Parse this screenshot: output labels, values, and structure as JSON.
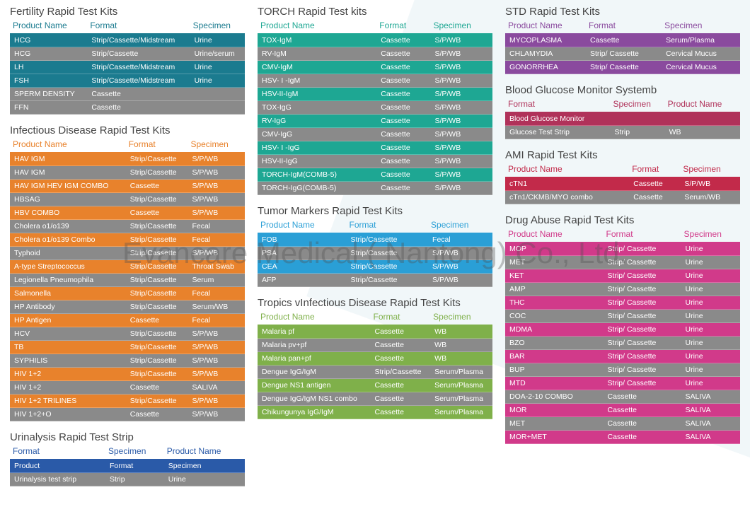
{
  "watermark": "Evancare Medical ( Nantong) Co., Ltd.",
  "sections": {
    "fertility": {
      "title": "Fertility Rapid Test Kits",
      "color": "#1b7b8f",
      "header_color": "#1b7b8f",
      "cols": [
        "Product Name",
        "Format",
        "Specimen"
      ],
      "rows": [
        [
          "HCG",
          "Strip/Cassette/Midstream",
          "Urine"
        ],
        [
          "HCG",
          "Strip/Cassette",
          "Urine/serum"
        ],
        [
          "LH",
          "Strip/Cassette/Midstream",
          "Urine"
        ],
        [
          "FSH",
          "Strip/Cassette/Midstream",
          "Urine"
        ],
        [
          "SPERM DENSITY",
          "Cassette",
          ""
        ],
        [
          "FFN",
          "Cassette",
          ""
        ]
      ],
      "alt": [
        1,
        4,
        5
      ]
    },
    "infectious": {
      "title": "Infectious Disease Rapid Test Kits",
      "color": "#e8822c",
      "header_color": "#e8822c",
      "cols": [
        "Product Name",
        "Format",
        "Specimen"
      ],
      "rows": [
        [
          "HAV IGM",
          "Strip/Cassette",
          "S/P/WB"
        ],
        [
          "HAV IGM",
          "Strip/Cassette",
          "S/P/WB"
        ],
        [
          "HAV IGM HEV IGM COMBO",
          "Cassette",
          "S/P/WB"
        ],
        [
          "HBSAG",
          "Strip/Cassette",
          "S/P/WB"
        ],
        [
          "HBV COMBO",
          "Cassette",
          "S/P/WB"
        ],
        [
          "Cholera o1/o139",
          "Strip/Cassette",
          "Fecal"
        ],
        [
          "Cholera o1/o139 Combo",
          "Strip/Cassette",
          "Fecal"
        ],
        [
          "Typhoid",
          "Strip/Cassette",
          "S/P/WB"
        ],
        [
          "A-type Streptococcus",
          "Strip/Cassette",
          "Throat Swab"
        ],
        [
          "Legionella Pneumophila",
          "Strip/Cassette",
          "Serum"
        ],
        [
          "Salmonella",
          "Strip/Cassette",
          "Fecal"
        ],
        [
          "HP Antibody",
          "Strip/Cassette",
          "Serum/WB"
        ],
        [
          "HP Antigen",
          "Cassette",
          "Fecal"
        ],
        [
          "HCV",
          "Strip/Cassette",
          "S/P/WB"
        ],
        [
          "TB",
          "Strip/Cassette",
          "S/P/WB"
        ],
        [
          "SYPHILIS",
          "Strip/Cassette",
          "S/P/WB"
        ],
        [
          "HIV 1+2",
          "Strip/Cassette",
          "S/P/WB"
        ],
        [
          "HIV 1+2",
          "Cassette",
          "SALIVA"
        ],
        [
          "HIV 1+2 TRILINES",
          "Strip/Cassette",
          "S/P/WB"
        ],
        [
          "HIV 1+2+O",
          "Cassette",
          "S/P/WB"
        ]
      ],
      "alt": [
        1,
        3,
        5,
        7,
        9,
        11,
        13,
        15,
        17,
        19
      ]
    },
    "urinalysis": {
      "title": "Urinalysis Rapid Test Strip",
      "color": "#2a5aa8",
      "header_color": "#2a5aa8",
      "cols": [
        "Format",
        "Specimen",
        "Product Name"
      ],
      "rows": [
        [
          "Product",
          "Format",
          "Specimen"
        ],
        [
          "Urinalysis test strip",
          "Strip",
          "Urine"
        ]
      ],
      "alt": [
        1
      ]
    },
    "torch": {
      "title": "TORCH Rapid Test kits",
      "color": "#1ea793",
      "header_color": "#1ea793",
      "cols": [
        "Product Name",
        "Format",
        "Specimen"
      ],
      "rows": [
        [
          "TOX-IgM",
          "Cassette",
          "S/P/WB"
        ],
        [
          "RV-IgM",
          "Cassette",
          "S/P/WB"
        ],
        [
          "CMV-IgM",
          "Cassette",
          "S/P/WB"
        ],
        [
          "HSV- I -IgM",
          "Cassette",
          "S/P/WB"
        ],
        [
          "HSV-II-IgM",
          "Cassette",
          "S/P/WB"
        ],
        [
          "TOX-IgG",
          "Cassette",
          "S/P/WB"
        ],
        [
          "RV-IgG",
          "Cassette",
          "S/P/WB"
        ],
        [
          "CMV-IgG",
          "Cassette",
          "S/P/WB"
        ],
        [
          "HSV- I -IgG",
          "Cassette",
          "S/P/WB"
        ],
        [
          "HSV-II-IgG",
          "Cassette",
          "S/P/WB"
        ],
        [
          "TORCH-IgM(COMB-5)",
          "Cassette",
          "S/P/WB"
        ],
        [
          "TORCH-IgG(COMB-5)",
          "Cassette",
          "S/P/WB"
        ]
      ],
      "alt": [
        1,
        3,
        5,
        7,
        9,
        11
      ]
    },
    "tumor": {
      "title": "Tumor Markers Rapid Test Kits",
      "color": "#2a9fd6",
      "header_color": "#2a9fd6",
      "cols": [
        "Product Name",
        "Format",
        "Specimen"
      ],
      "rows": [
        [
          "FOB",
          "Strip/Cassette",
          "Fecal"
        ],
        [
          "PSA",
          "Strip/Cassette",
          "S/P/WB"
        ],
        [
          "CEA",
          "Strip/Cassette",
          "S/P/WB"
        ],
        [
          "AFP",
          "Strip/Cassette",
          "S/P/WB"
        ]
      ],
      "alt": [
        1,
        3
      ]
    },
    "tropics": {
      "title": "Tropics vInfectious Disease Rapid Test Kits",
      "color": "#7fb04a",
      "header_color": "#7fb04a",
      "cols": [
        "Product Name",
        "Format",
        "Specimen"
      ],
      "rows": [
        [
          "Malaria pf",
          "Cassette",
          "WB"
        ],
        [
          "Malaria  pv+pf",
          "Cassette",
          "WB"
        ],
        [
          "Malaria  pan+pf",
          "Cassette",
          "WB"
        ],
        [
          "Dengue IgG/IgM",
          "Strip/Cassette",
          "Serum/Plasma"
        ],
        [
          "Dengue NS1 antigen",
          "Cassette",
          "Serum/Plasma"
        ],
        [
          "Dengue IgG/IgM  NS1 combo",
          "Cassette",
          "Serum/Plasma"
        ],
        [
          "Chikungunya IgG/IgM",
          "Cassette",
          "Serum/Plasma"
        ]
      ],
      "alt": [
        1,
        3,
        5
      ]
    },
    "std": {
      "title": "STD Rapid Test Kits",
      "color": "#8a4a9e",
      "header_color": "#8a4a9e",
      "cols": [
        "Product Name",
        "Format",
        "Specimen"
      ],
      "rows": [
        [
          "MYCOPLASMA",
          "Cassette",
          "Serum/Plasma"
        ],
        [
          "CHLAMYDIA",
          "Strip/ Cassette",
          "Cervical Mucus"
        ],
        [
          "GONORRHEA",
          "Strip/ Cassette",
          "Cervical Mucus"
        ]
      ],
      "alt": [
        1
      ]
    },
    "glucose": {
      "title": "Blood Glucose Monitor Systemb",
      "color": "#b0325a",
      "header_color": "#b0325a",
      "cols": [
        "Format",
        "Specimen",
        "Product Name"
      ],
      "rows": [
        [
          "Blood Glucose Monitor",
          "",
          ""
        ],
        [
          "Glucose Test Strip",
          "Strip",
          "WB"
        ]
      ],
      "alt": [
        1
      ]
    },
    "ami": {
      "title": "AMI  Rapid Test Kits",
      "color": "#c22a4a",
      "header_color": "#c22a4a",
      "cols": [
        "Product Name",
        "Format",
        "Specimen"
      ],
      "rows": [
        [
          "cTN1",
          "Cassette",
          "S/P/WB"
        ],
        [
          "cTn1/CKMB/MYO combo",
          "Cassette",
          "Serum/WB"
        ]
      ],
      "alt": [
        1
      ]
    },
    "drug": {
      "title": "Drug Abuse Rapid Test Kits",
      "color": "#d13a8a",
      "header_color": "#d13a8a",
      "cols": [
        "Product Name",
        "Format",
        "Specimen"
      ],
      "rows": [
        [
          "MOP",
          "Strip/ Cassette",
          "Urine"
        ],
        [
          "MET",
          "Strip/ Cassette",
          "Urine"
        ],
        [
          "KET",
          "Strip/ Cassette",
          "Urine"
        ],
        [
          "AMP",
          "Strip/ Cassette",
          "Urine"
        ],
        [
          "THC",
          "Strip/ Cassette",
          "Urine"
        ],
        [
          "COC",
          "Strip/ Cassette",
          "Urine"
        ],
        [
          "MDMA",
          "Strip/ Cassette",
          "Urine"
        ],
        [
          "BZO",
          "Strip/ Cassette",
          "Urine"
        ],
        [
          "BAR",
          "Strip/ Cassette",
          "Urine"
        ],
        [
          "BUP",
          "Strip/ Cassette",
          "Urine"
        ],
        [
          "MTD",
          "Strip/ Cassette",
          "Urine"
        ],
        [
          "DOA-2-10 COMBO",
          "Cassette",
          "SALIVA"
        ],
        [
          "MOR",
          "Cassette",
          "SALIVA"
        ],
        [
          "MET",
          "Cassette",
          "SALIVA"
        ],
        [
          "MOR+MET",
          "Cassette",
          "SALIVA"
        ]
      ],
      "alt": [
        1,
        3,
        5,
        7,
        9,
        11,
        13
      ]
    }
  },
  "layout": {
    "col1": [
      "fertility",
      "infectious",
      "urinalysis"
    ],
    "col2": [
      "torch",
      "tumor",
      "tropics"
    ],
    "col3": [
      "std",
      "glucose",
      "ami",
      "drug"
    ]
  }
}
